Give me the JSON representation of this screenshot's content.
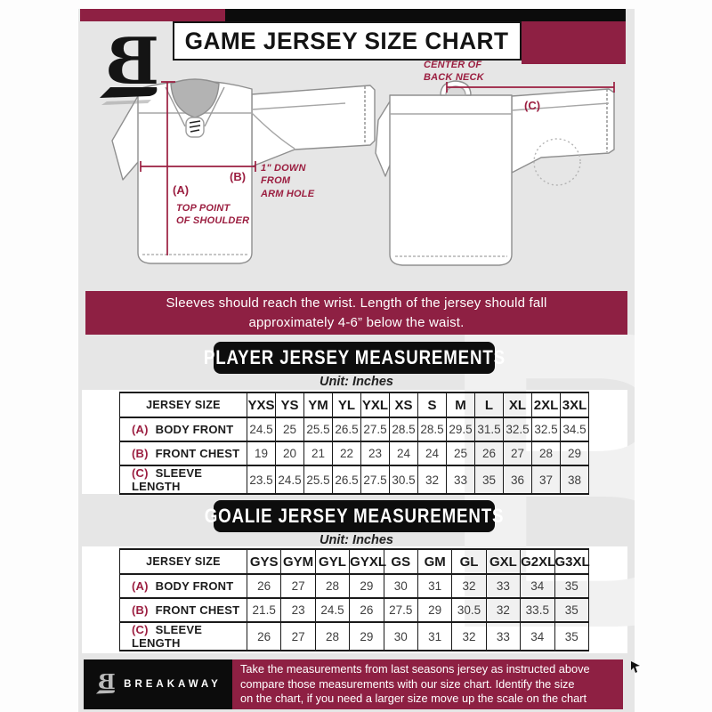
{
  "colors": {
    "maroon": "#8e2043",
    "annotation_maroon": "#9b1e40",
    "black": "#0c0c0c",
    "canvas_gray": "#e6e6e6",
    "table_line": "#1a1a1a"
  },
  "header": {
    "title": "GAME JERSEY SIZE CHART",
    "logo": "breakaway-b-logo"
  },
  "watermark": "B",
  "diagram": {
    "front": {
      "a_key": "(A)",
      "a_line1": "TOP POINT",
      "a_line2": "OF SHOULDER",
      "b_key": "(B)",
      "b_line1": "1\" DOWN",
      "b_line2": "FROM",
      "b_line3": "ARM HOLE"
    },
    "back": {
      "c_key": "(C)",
      "c_line1": "CENTER OF",
      "c_line2": "BACK NECK"
    }
  },
  "notice": {
    "line1": "Sleeves should reach the wrist. Length of the jersey should fall",
    "line2": "approximately 4-6” below the waist."
  },
  "player_table": {
    "title": "PLAYER JERSEY MEASUREMENTS",
    "unit": "Unit: Inches",
    "header": [
      "JERSEY SIZE",
      "YXS",
      "YS",
      "YM",
      "YL",
      "YXL",
      "XS",
      "S",
      "M",
      "L",
      "XL",
      "2XL",
      "3XL"
    ],
    "rows": [
      {
        "key": "(A)",
        "label": "BODY FRONT",
        "values": [
          "24.5",
          "25",
          "25.5",
          "26.5",
          "27.5",
          "28.5",
          "28.5",
          "29.5",
          "31.5",
          "32.5",
          "32.5",
          "34.5"
        ]
      },
      {
        "key": "(B)",
        "label": "FRONT CHEST",
        "values": [
          "19",
          "20",
          "21",
          "22",
          "23",
          "24",
          "24",
          "25",
          "26",
          "27",
          "28",
          "29"
        ]
      },
      {
        "key": "(C)",
        "label": "SLEEVE LENGTH",
        "values": [
          "23.5",
          "24.5",
          "25.5",
          "26.5",
          "27.5",
          "30.5",
          "32",
          "33",
          "35",
          "36",
          "37",
          "38"
        ]
      }
    ]
  },
  "goalie_table": {
    "title": "GOALIE JERSEY MEASUREMENTS",
    "unit": "Unit: Inches",
    "header": [
      "JERSEY SIZE",
      "GYS",
      "GYM",
      "GYL",
      "GYXL",
      "GS",
      "GM",
      "GL",
      "GXL",
      "G2XL",
      "G3XL"
    ],
    "rows": [
      {
        "key": "(A)",
        "label": "BODY FRONT",
        "values": [
          "26",
          "27",
          "28",
          "29",
          "30",
          "31",
          "32",
          "33",
          "34",
          "35"
        ]
      },
      {
        "key": "(B)",
        "label": "FRONT CHEST",
        "values": [
          "21.5",
          "23",
          "24.5",
          "26",
          "27.5",
          "29",
          "30.5",
          "32",
          "33.5",
          "35"
        ]
      },
      {
        "key": "(C)",
        "label": "SLEEVE LENGTH",
        "values": [
          "26",
          "27",
          "28",
          "29",
          "30",
          "31",
          "32",
          "33",
          "34",
          "35"
        ]
      }
    ]
  },
  "footer": {
    "brand": "BREAKAWAY",
    "line1": "Take the measurements from last seasons jersey as instructed above",
    "line2": "compare those measurements  with our size chart. Identify the size",
    "line3": "on the chart, if you need a larger size move up the scale on the chart"
  }
}
